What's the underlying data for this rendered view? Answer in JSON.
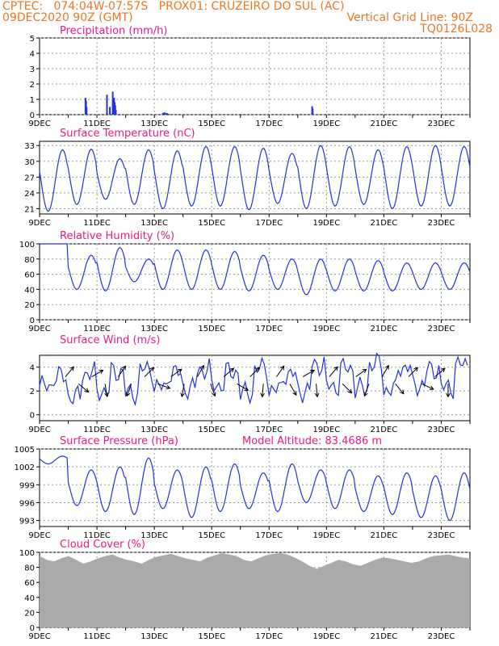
{
  "header": {
    "line1": "CPTEC:   074:04W-07:57S   PROX01: CRUZEIRO DO SUL (AC)",
    "line2_left": "09DEC2020 90Z (GMT)",
    "line2_right": "Vertical Grid Line: 90Z",
    "line3_right": "TQ0126L028"
  },
  "colors": {
    "header": "#e87722",
    "title": "#e8198b",
    "series": "#2233dd",
    "cloud": "#aaaaaa",
    "grid": "#999999"
  },
  "x_axis": {
    "labels": [
      "9DEC",
      "11DEC",
      "13DEC",
      "15DEC",
      "17DEC",
      "19DEC",
      "21DEC",
      "23DEC"
    ],
    "label_days": [
      0,
      2,
      4,
      6,
      8,
      10,
      12,
      14
    ],
    "days_span": 15
  },
  "chart_data": [
    {
      "type": "bar",
      "title": "Precipitation (mm/h)",
      "ylim": [
        0,
        5
      ],
      "yticks": [
        "0",
        "1",
        "2",
        "3",
        "4",
        "5"
      ],
      "x_days": [
        1.6,
        1.62,
        1.64,
        2.35,
        2.45,
        2.55,
        2.57,
        2.6,
        2.62,
        2.64,
        2.66,
        4.3,
        4.35,
        4.4,
        4.45,
        4.5,
        9.5,
        9.52
      ],
      "values": [
        1.1,
        0.9,
        0.5,
        1.3,
        0.5,
        1.5,
        1.0,
        1.1,
        0.8,
        0.6,
        0.3,
        0.1,
        0.15,
        0.1,
        0.1,
        0.05,
        0.55,
        0.4
      ]
    },
    {
      "type": "line",
      "title": "Surface Temperature (nC)",
      "ylim": [
        20,
        33.8
      ],
      "yticks": [
        "21",
        "24",
        "27",
        "30",
        "33"
      ],
      "minima": [
        20.5,
        21.8,
        22.8,
        21.8,
        21.0,
        21.5,
        21.5,
        20.8,
        22.0,
        21.0,
        21.5,
        21.8,
        21.0,
        21.5,
        21.5
      ],
      "maxima": [
        32.2,
        32.3,
        30.5,
        32.2,
        32.0,
        32.8,
        32.8,
        32.5,
        31.5,
        33.0,
        32.8,
        32.2,
        32.8,
        33.0,
        32.8
      ]
    },
    {
      "type": "line",
      "title": "Relative Humidity (%)",
      "ylim": [
        0,
        100
      ],
      "yticks": [
        "0",
        "20",
        "40",
        "60",
        "80",
        "100"
      ],
      "minima": [
        100,
        40,
        38,
        50,
        40,
        40,
        40,
        38,
        40,
        33,
        38,
        38,
        38,
        40,
        40
      ],
      "maxima": [
        100,
        85,
        95,
        80,
        92,
        92,
        90,
        85,
        80,
        80,
        80,
        78,
        75,
        75,
        75
      ]
    },
    {
      "type": "line",
      "title": "Surface Wind (m/s)",
      "ylim": [
        -0.5,
        5
      ],
      "yticks": [
        "0",
        "2",
        "4"
      ],
      "speeds": [
        2.4,
        3.2,
        1.5,
        3.5,
        2.0,
        3.6,
        1.8,
        3.8,
        2.3,
        3.5,
        2.2,
        3.8,
        2.5,
        3.6,
        1.8,
        3.9,
        2.1,
        3.4,
        2.0,
        4.2,
        2.4,
        3.9,
        2.2,
        4.3,
        2.1,
        4.0,
        2.5,
        3.8,
        2.3,
        4.2
      ]
    },
    {
      "type": "line",
      "title": "Surface Pressure (hPa)",
      "annotation": "Model Altitude: 83.4686  m",
      "ylim": [
        992,
        1005
      ],
      "yticks": [
        "993",
        "996",
        "999",
        "1002",
        "1005"
      ],
      "minima": [
        1002.5,
        995.5,
        994.5,
        994.0,
        995.0,
        993.5,
        994.5,
        995.0,
        994.5,
        996.0,
        995.0,
        994.5,
        994.0,
        993.5,
        993.0
      ],
      "maxima": [
        1003.8,
        1001.5,
        1002.0,
        1003.5,
        1001.5,
        1002.0,
        1002.5,
        1001.0,
        1002.5,
        1001.5,
        1001.5,
        1000.5,
        1001.0,
        1000.5,
        1001.0
      ]
    },
    {
      "type": "area",
      "title": "Cloud Cover (%)",
      "ylim": [
        0,
        100
      ],
      "yticks": [
        "0",
        "20",
        "40",
        "60",
        "80",
        "100"
      ],
      "values": [
        95,
        90,
        88,
        92,
        95,
        90,
        85,
        88,
        92,
        95,
        97,
        93,
        90,
        88,
        85,
        90,
        94,
        96,
        98,
        95,
        92,
        90,
        88,
        93,
        96,
        99,
        97,
        95,
        90,
        88,
        92,
        96,
        98,
        99,
        97,
        93,
        88,
        82,
        78,
        82,
        86,
        90,
        88,
        84,
        82,
        86,
        90,
        93,
        92,
        90,
        88,
        86,
        88,
        92,
        95,
        96,
        97,
        95,
        93,
        92
      ]
    }
  ]
}
